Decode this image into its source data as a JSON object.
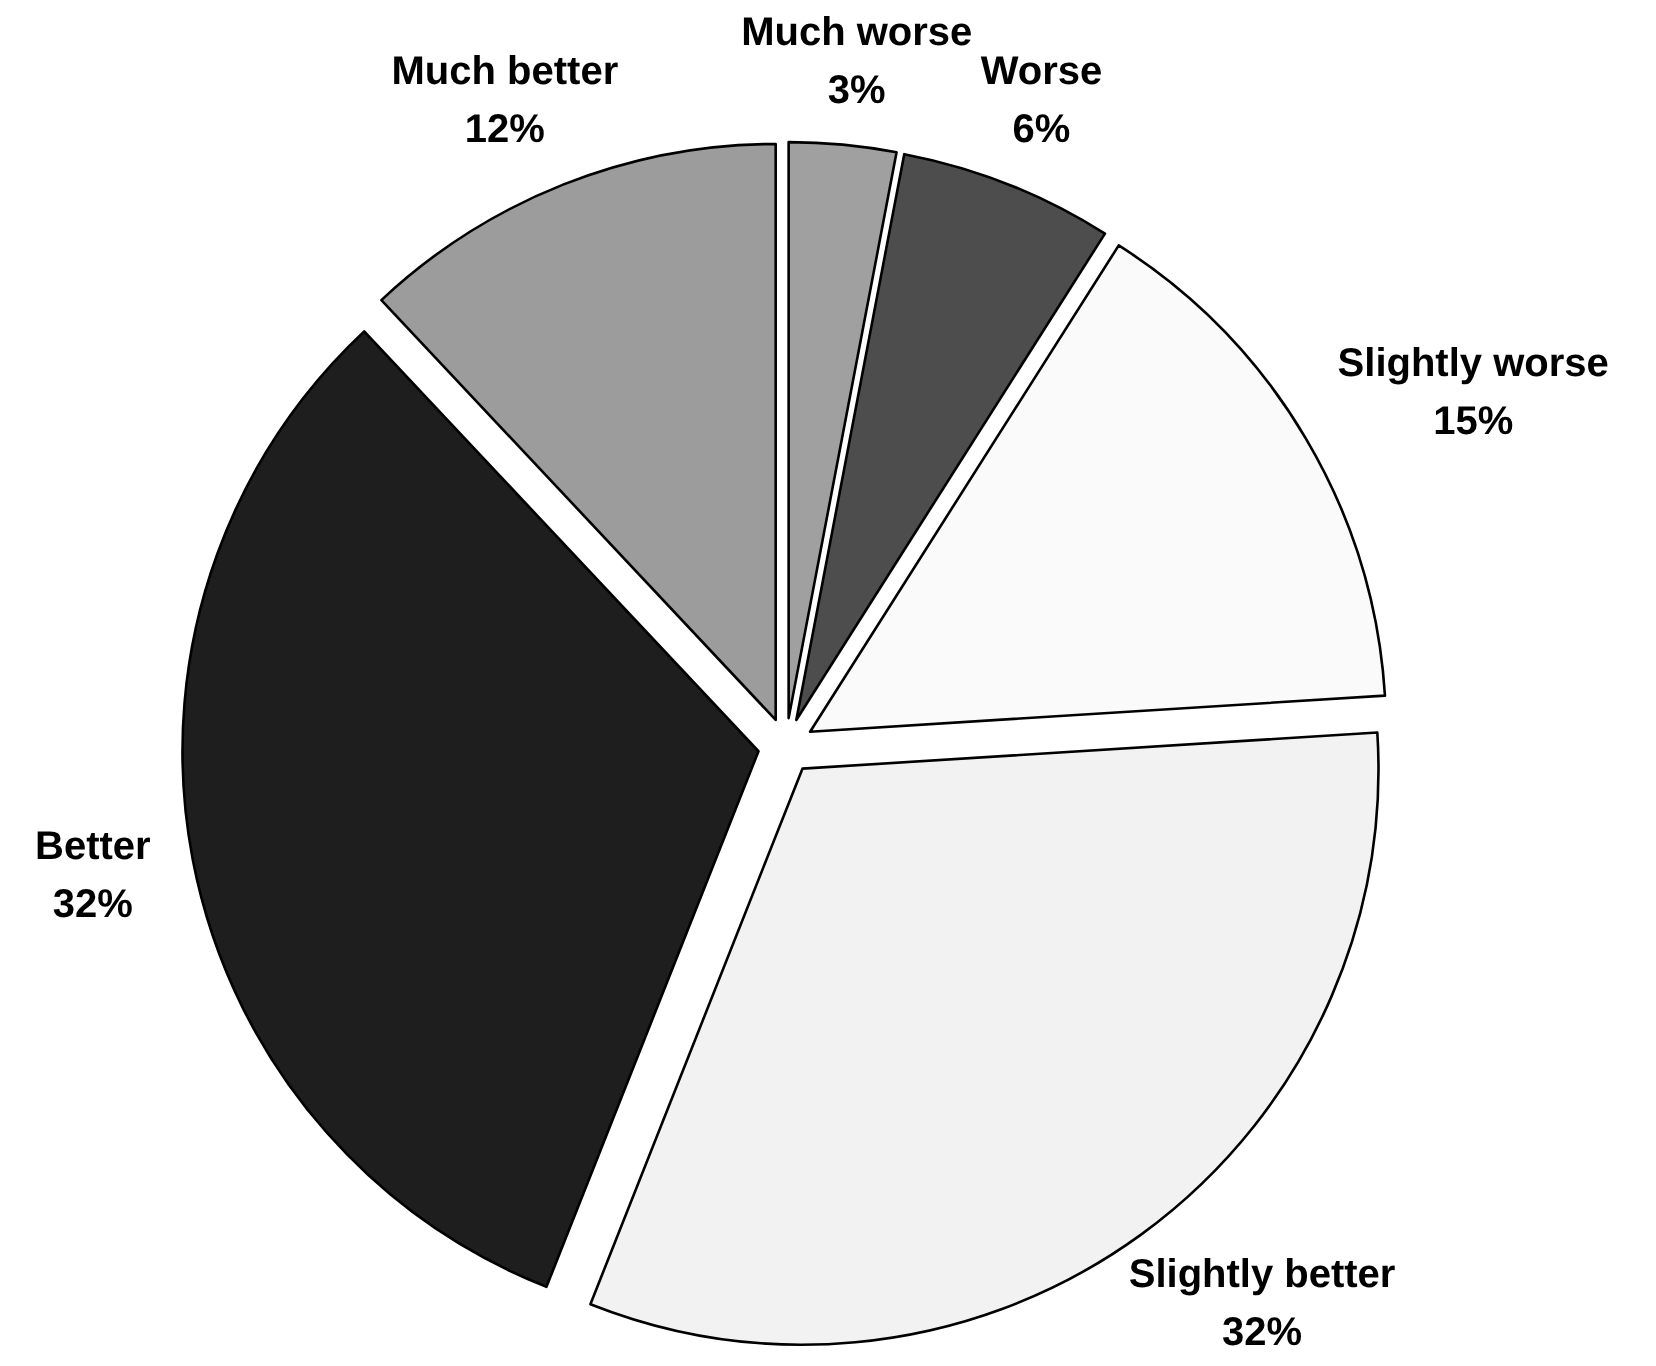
{
  "chart_data": {
    "type": "pie",
    "categories": [
      "Much worse",
      "Worse",
      "Slightly worse",
      "Slightly better",
      "Better",
      "Much better"
    ],
    "values": [
      3,
      6,
      15,
      32,
      32,
      12
    ],
    "colors": [
      "#a0a0a0",
      "#4d4d4d",
      "#fafafa",
      "#f2f2f2",
      "#1e1e1e",
      "#9c9c9c"
    ],
    "value_labels": [
      "3%",
      "6%",
      "15%",
      "32%",
      "32%",
      "12%"
    ]
  }
}
